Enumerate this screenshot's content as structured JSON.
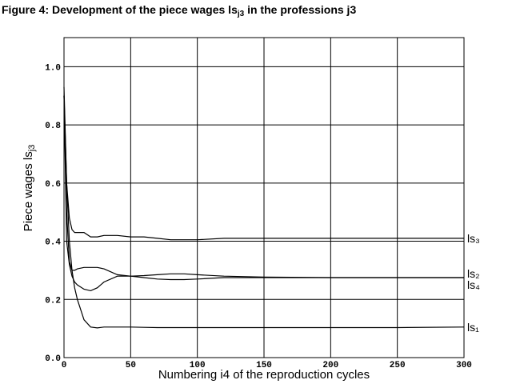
{
  "chart_data": {
    "type": "line",
    "title": [
      "Figure 4: Development of the piece wages ls",
      "j3",
      " in the professions j3"
    ],
    "x_label": "Numbering i4 of the reproduction cycles",
    "y_label": [
      "Piece wages ls",
      "j3"
    ],
    "x": [
      0,
      2,
      4,
      6,
      8,
      10,
      15,
      20,
      25,
      30,
      40,
      50,
      60,
      70,
      80,
      90,
      100,
      120,
      150,
      200,
      250,
      300
    ],
    "series": [
      {
        "name": "ls₃",
        "color": "#000000",
        "values": [
          0.9,
          0.6,
          0.48,
          0.44,
          0.43,
          0.43,
          0.43,
          0.415,
          0.415,
          0.42,
          0.42,
          0.415,
          0.415,
          0.41,
          0.405,
          0.405,
          0.405,
          0.41,
          0.41,
          0.41,
          0.41,
          0.41
        ]
      },
      {
        "name": "ls₂",
        "color": "#000000",
        "values": [
          0.9,
          0.5,
          0.33,
          0.3,
          0.3,
          0.305,
          0.31,
          0.31,
          0.31,
          0.305,
          0.285,
          0.28,
          0.275,
          0.27,
          0.268,
          0.268,
          0.27,
          0.275,
          0.275,
          0.275,
          0.275,
          0.275
        ]
      },
      {
        "name": "ls₄",
        "color": "#000000",
        "values": [
          0.9,
          0.4,
          0.32,
          0.28,
          0.26,
          0.25,
          0.235,
          0.23,
          0.24,
          0.26,
          0.28,
          0.28,
          0.282,
          0.285,
          0.288,
          0.288,
          0.285,
          0.28,
          0.277,
          0.275,
          0.275,
          0.275
        ]
      },
      {
        "name": "ls₁",
        "color": "#000000",
        "values": [
          0.93,
          0.6,
          0.4,
          0.3,
          0.24,
          0.2,
          0.13,
          0.105,
          0.102,
          0.105,
          0.105,
          0.105,
          0.104,
          0.103,
          0.103,
          0.103,
          0.103,
          0.103,
          0.103,
          0.103,
          0.103,
          0.105
        ]
      }
    ],
    "xlim": [
      0,
      300
    ],
    "xticks": [
      0,
      50,
      100,
      150,
      200,
      250,
      300
    ],
    "ylim": [
      0,
      1.1
    ],
    "yticks": [
      {
        "value": 0,
        "label": "0.0"
      },
      0.2,
      0.4,
      0.6,
      0.8,
      {
        "value": 1,
        "label": "1.0"
      }
    ],
    "grid": true
  }
}
